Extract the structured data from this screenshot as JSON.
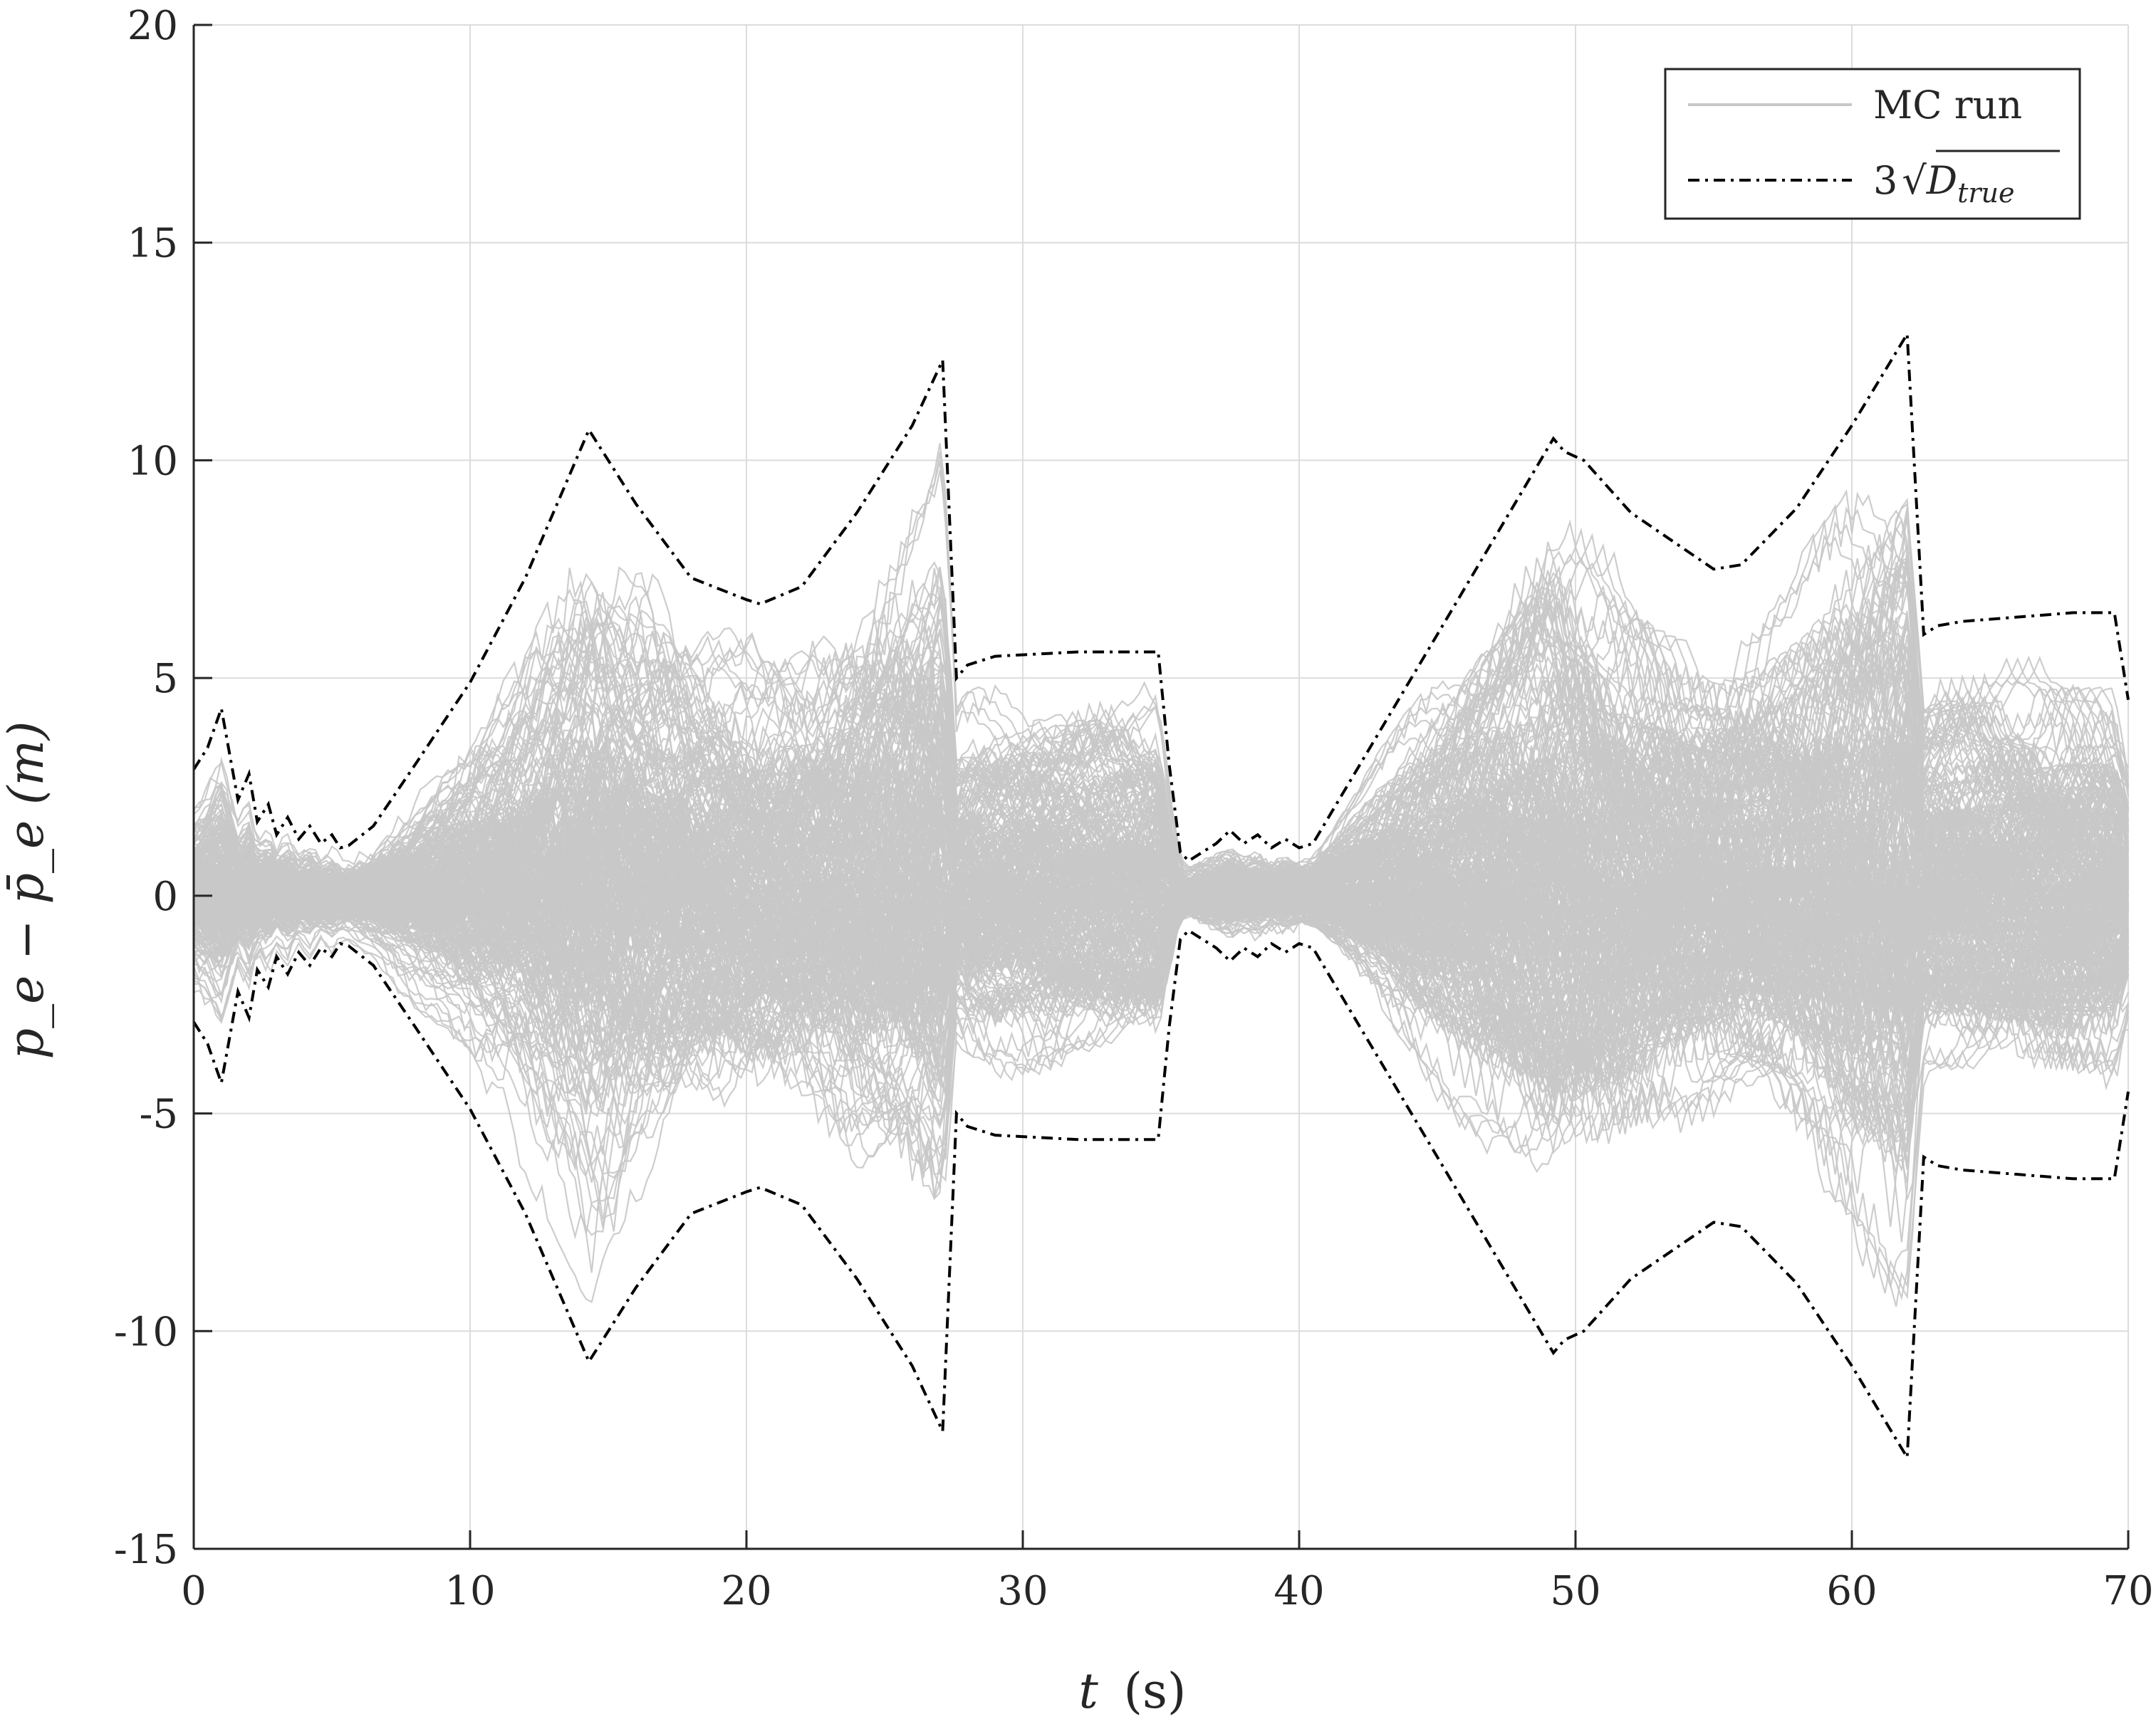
{
  "chart_data": {
    "type": "line",
    "xlabel": "t (s)",
    "ylabel": "p_e − p̄_e (m)",
    "xlim": [
      0,
      70
    ],
    "ylim": [
      -15,
      20
    ],
    "xticks": [
      "0",
      "10",
      "20",
      "30",
      "40",
      "50",
      "60",
      "70"
    ],
    "yticks": [
      "-15",
      "-10",
      "-5",
      "0",
      "5",
      "10",
      "15",
      "20"
    ],
    "grid": true,
    "legend_position": "top-right",
    "colors": {
      "mc": "#c8c8c8",
      "bound": "#000000",
      "axis": "#262626",
      "grid": "#dcdcdc"
    },
    "series": [
      {
        "name": "MC run",
        "style": "solid",
        "note_count": 300
      },
      {
        "name": "3√D_true",
        "style": "dash-dot",
        "x": [
          0,
          0.5,
          1.0,
          1.2,
          1.6,
          2.0,
          2.3,
          2.7,
          3.0,
          3.4,
          3.8,
          4.2,
          4.6,
          5.0,
          5.3,
          5.6,
          6.5,
          8,
          10,
          12,
          14.3,
          16,
          18,
          20,
          20.5,
          22,
          24,
          26,
          27.1,
          27.6,
          28.0,
          29,
          32,
          34.9,
          35.3,
          35.7,
          36.0,
          36.5,
          37.0,
          37.5,
          38.0,
          38.5,
          39.0,
          39.5,
          40.0,
          40.5,
          42,
          45,
          49.2,
          49.6,
          50.3,
          52,
          55,
          56,
          58,
          60,
          62.0,
          62.6,
          63.1,
          64,
          66,
          68,
          69.5,
          70
        ],
        "upper": [
          2.9,
          3.4,
          4.3,
          3.6,
          2.2,
          2.8,
          1.7,
          2.1,
          1.4,
          1.8,
          1.3,
          1.6,
          1.2,
          1.4,
          1.1,
          1.15,
          1.6,
          3.0,
          4.9,
          7.3,
          10.7,
          9.0,
          7.3,
          6.8,
          6.7,
          7.1,
          8.8,
          10.8,
          12.3,
          5.0,
          5.3,
          5.5,
          5.6,
          5.6,
          3.0,
          1.0,
          0.8,
          1.0,
          1.2,
          1.5,
          1.2,
          1.4,
          1.1,
          1.3,
          1.1,
          1.2,
          2.8,
          6.0,
          10.5,
          10.2,
          10.0,
          8.8,
          7.5,
          7.6,
          8.9,
          10.8,
          12.9,
          6.0,
          6.2,
          6.3,
          6.4,
          6.5,
          6.5,
          4.5
        ],
        "lower": [
          -2.9,
          -3.4,
          -4.3,
          -3.6,
          -2.2,
          -2.8,
          -1.7,
          -2.1,
          -1.4,
          -1.8,
          -1.3,
          -1.6,
          -1.2,
          -1.4,
          -1.1,
          -1.15,
          -1.6,
          -3.0,
          -4.9,
          -7.3,
          -10.7,
          -9.0,
          -7.3,
          -6.8,
          -6.7,
          -7.1,
          -8.8,
          -10.8,
          -12.3,
          -5.0,
          -5.3,
          -5.5,
          -5.6,
          -5.6,
          -3.0,
          -1.0,
          -0.8,
          -1.0,
          -1.2,
          -1.5,
          -1.2,
          -1.4,
          -1.1,
          -1.3,
          -1.1,
          -1.2,
          -2.8,
          -6.0,
          -10.5,
          -10.2,
          -10.0,
          -8.8,
          -7.5,
          -7.6,
          -8.9,
          -10.8,
          -12.9,
          -6.0,
          -6.2,
          -6.3,
          -6.4,
          -6.5,
          -6.5,
          -4.5
        ]
      }
    ]
  },
  "legend": {
    "mc_label": "MC run",
    "bound_prefix": "3",
    "bound_var": "D",
    "bound_sub": "true"
  },
  "axes": {
    "x_label_var": "t",
    "x_label_unit": "(s)",
    "y_label": "p_e − p̄_e (m)"
  }
}
